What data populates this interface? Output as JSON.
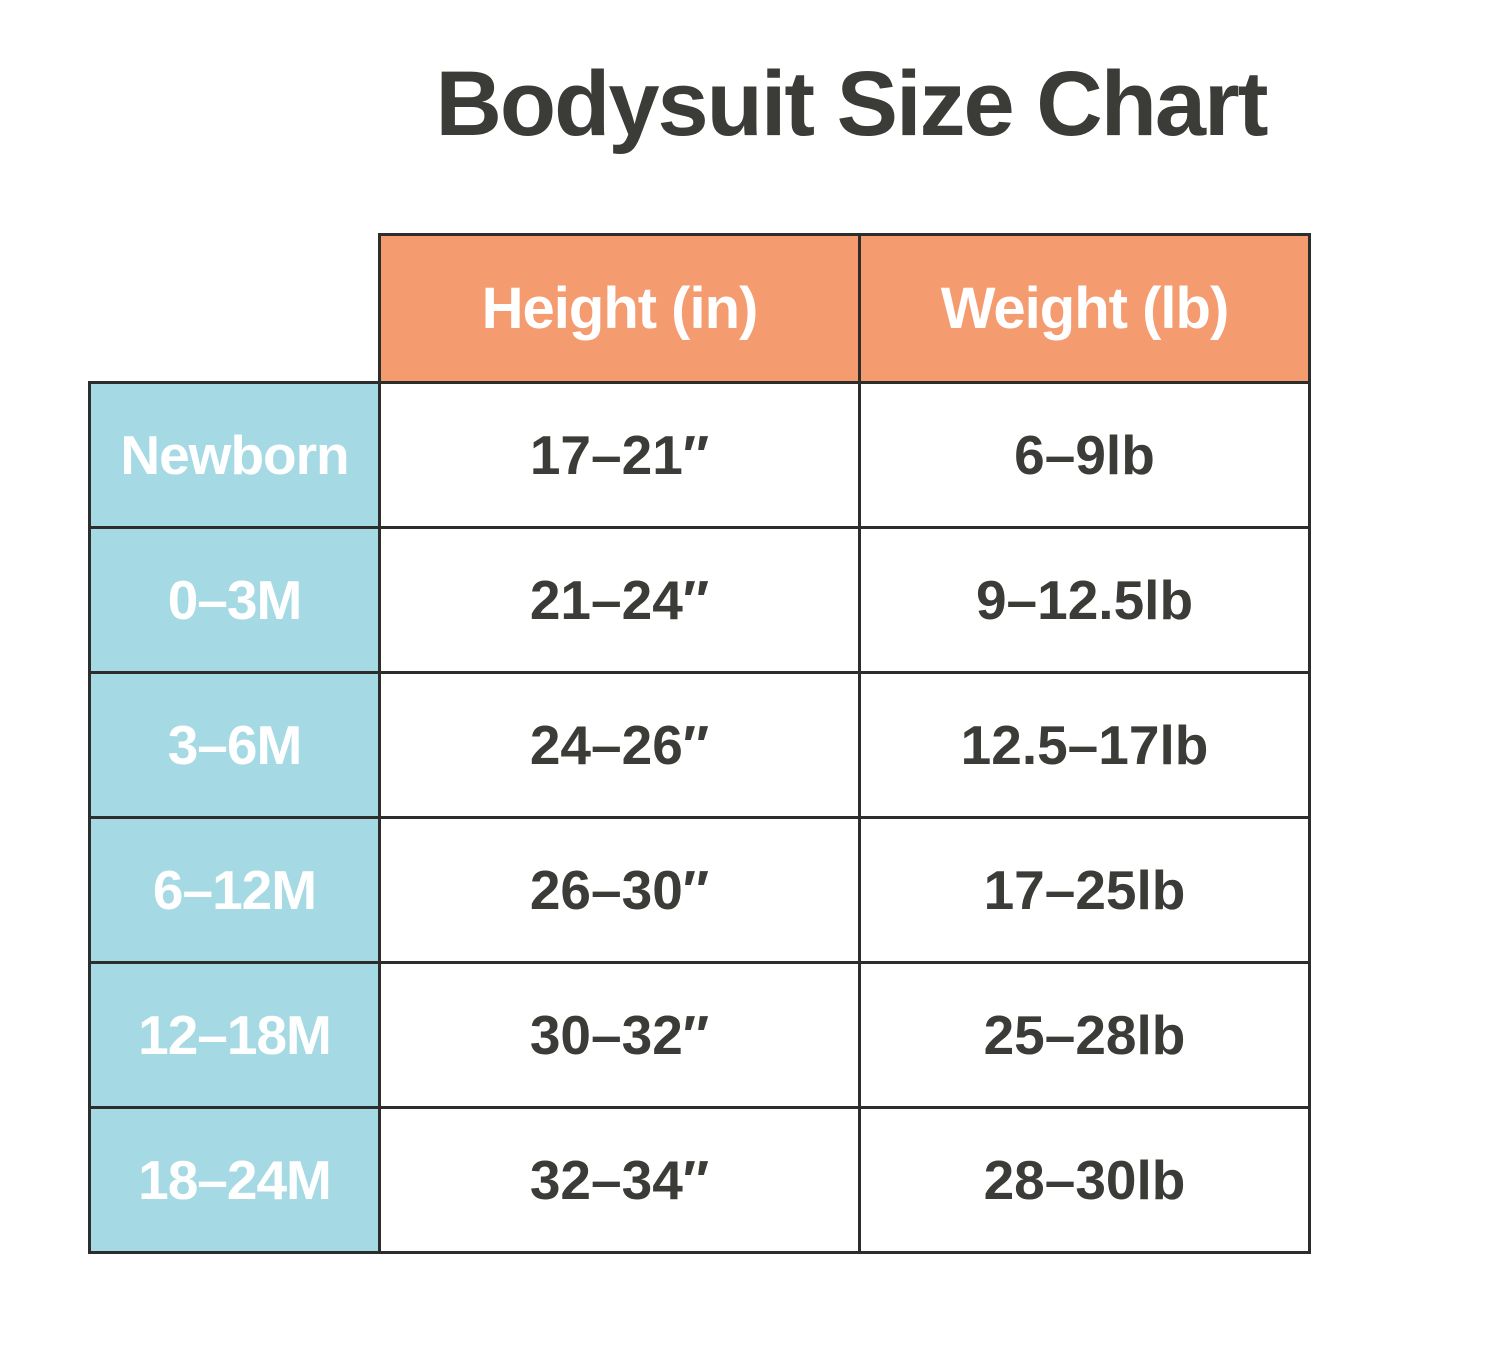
{
  "title": "Bodysuit Size Chart",
  "colors": {
    "page-bg": "#ffffff",
    "title-text": "#3b3b38",
    "header-bg": "#f49b70",
    "header-text": "#ffffff",
    "label-bg": "#a5d9e3",
    "label-text": "#ffffff",
    "cell-text": "#3b3b38",
    "border": "#2d2d2b"
  },
  "chart_data": {
    "type": "table",
    "title": "Bodysuit Size Chart",
    "columns": [
      "Height (in)",
      "Weight (lb)"
    ],
    "rows": [
      {
        "size": "Newborn",
        "height_in": "17–21″",
        "weight_lb": "6–9lb"
      },
      {
        "size": "0–3M",
        "height_in": "21–24″",
        "weight_lb": "9–12.5lb"
      },
      {
        "size": "3–6M",
        "height_in": "24–26″",
        "weight_lb": "12.5–17lb"
      },
      {
        "size": "6–12M",
        "height_in": "26–30″",
        "weight_lb": "17–25lb"
      },
      {
        "size": "12–18M",
        "height_in": "30–32″",
        "weight_lb": "25–28lb"
      },
      {
        "size": "18–24M",
        "height_in": "32–34″",
        "weight_lb": "28–30lb"
      }
    ]
  }
}
